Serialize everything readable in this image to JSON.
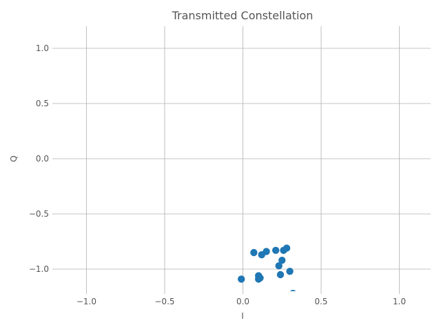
{
  "chart_data": {
    "type": "scatter",
    "title": "Transmitted Constellation",
    "xlabel": "I",
    "ylabel": "Q",
    "xlim": [
      -1.2,
      1.2
    ],
    "ylim": [
      -1.2,
      1.2
    ],
    "xticks": [
      -1.0,
      -0.5,
      0.0,
      0.5,
      1.0
    ],
    "yticks": [
      1.0,
      0.5,
      0.0,
      -0.5,
      -1.0
    ],
    "xtick_labels": [
      "−1.0",
      "−0.5",
      "0.0",
      "0.5",
      "1.0"
    ],
    "ytick_labels": [
      "1.0",
      "0.5",
      "0.0",
      "−0.5",
      "−1.0"
    ],
    "grid": true,
    "marker_color": "#1f77b4",
    "points": [
      {
        "x": 0.07,
        "y": -0.85
      },
      {
        "x": 0.12,
        "y": -0.87
      },
      {
        "x": 0.15,
        "y": -0.84
      },
      {
        "x": 0.21,
        "y": -0.83
      },
      {
        "x": 0.26,
        "y": -0.83
      },
      {
        "x": 0.28,
        "y": -0.81
      },
      {
        "x": 0.25,
        "y": -0.92
      },
      {
        "x": 0.23,
        "y": -0.97
      },
      {
        "x": 0.3,
        "y": -1.02
      },
      {
        "x": 0.24,
        "y": -1.05
      },
      {
        "x": 0.1,
        "y": -1.06
      },
      {
        "x": 0.11,
        "y": -1.08
      },
      {
        "x": 0.1,
        "y": -1.09
      },
      {
        "x": -0.01,
        "y": -1.09
      },
      {
        "x": 0.32,
        "y": -1.22
      }
    ]
  }
}
